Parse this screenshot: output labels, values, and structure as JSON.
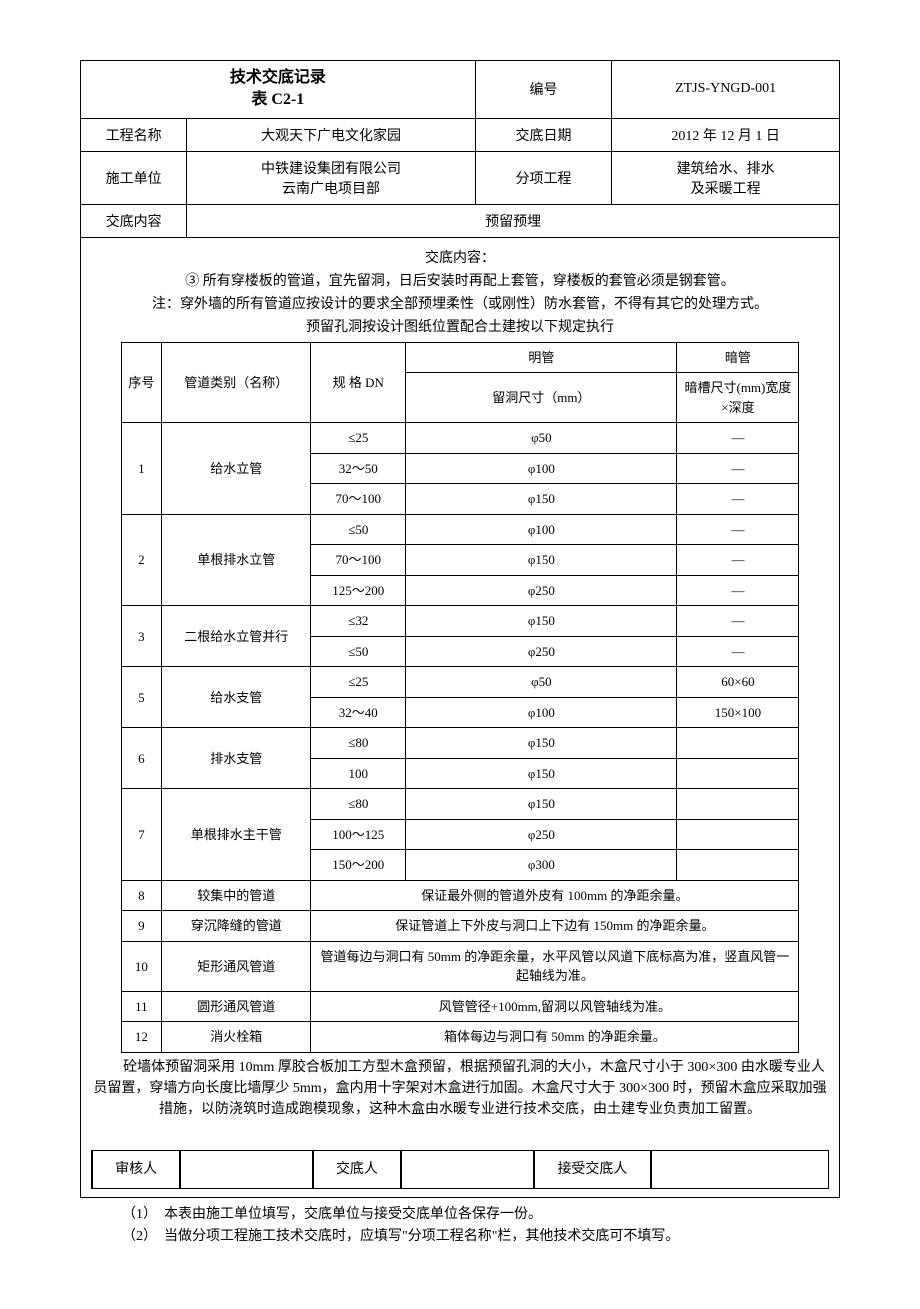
{
  "header": {
    "title_line1": "技术交底记录",
    "title_line2": "表 C2-1",
    "number_label": "编号",
    "number_value": "ZTJS-YNGD-001",
    "project_label": "工程名称",
    "project_value": "大观天下广电文化家园",
    "date_label": "交底日期",
    "date_value": "2012 年 12 月 1 日",
    "unit_label": "施工单位",
    "unit_value_line1": "中铁建设集团有限公司",
    "unit_value_line2": "云南广电项目部",
    "sub_label": "分项工程",
    "sub_value_line1": "建筑给水、排水",
    "sub_value_line2": "及采暖工程",
    "content_label": "交底内容",
    "content_value": "预留预埋"
  },
  "body": {
    "intro_title": "交底内容：",
    "bullet3": "③ 所有穿楼板的管道，宜先留洞，日后安装时再配上套管，穿楼板的套管必须是钢套管。",
    "note_line": "注：穿外墙的所有管道应按设计的要求全部预埋柔性（或刚性）防水套管，不得有其它的处理方式。",
    "table_caption": "预留孔洞按设计图纸位置配合土建按以下规定执行",
    "table_headers": {
      "seq": "序号",
      "category": "管道类别（名称）",
      "spec": "规 格 DN",
      "exposed": "明管",
      "exposed_sub": "留洞尺寸（mm）",
      "hidden": "暗管",
      "hidden_sub": "暗槽尺寸(mm)宽度×深度"
    },
    "rows": [
      {
        "seq": "1",
        "category": "给水立管",
        "specs": [
          "≤25",
          "32～50",
          "70～100"
        ],
        "exposed": [
          "φ50",
          "φ100",
          "φ150"
        ],
        "hidden": [
          "—",
          "—",
          "—"
        ]
      },
      {
        "seq": "2",
        "category": "单根排水立管",
        "specs": [
          "≤50",
          "70～100",
          "125～200"
        ],
        "exposed": [
          "φ100",
          "φ150",
          "φ250"
        ],
        "hidden": [
          "—",
          "—",
          "—"
        ]
      },
      {
        "seq": "3",
        "category": "二根给水立管并行",
        "specs": [
          "≤32",
          "≤50"
        ],
        "exposed": [
          "φ150",
          "φ250"
        ],
        "hidden": [
          "—",
          "—"
        ]
      },
      {
        "seq": "5",
        "category": "给水支管",
        "specs": [
          "≤25",
          "32～40"
        ],
        "exposed": [
          "φ50",
          "φ100"
        ],
        "hidden": [
          "60×60",
          "150×100"
        ]
      },
      {
        "seq": "6",
        "category": "排水支管",
        "specs": [
          "≤80",
          "100"
        ],
        "exposed": [
          "φ150",
          "φ150"
        ],
        "hidden": [
          "",
          ""
        ]
      },
      {
        "seq": "7",
        "category": "单根排水主干管",
        "specs": [
          "≤80",
          "100～125",
          "150～200"
        ],
        "exposed": [
          "φ150",
          "φ250",
          "φ300"
        ],
        "hidden": [
          "",
          "",
          ""
        ]
      }
    ],
    "text_rows": [
      {
        "seq": "8",
        "category": "较集中的管道",
        "text": "保证最外侧的管道外皮有 100mm 的净距余量。"
      },
      {
        "seq": "9",
        "category": "穿沉降缝的管道",
        "text": "保证管道上下外皮与洞口上下边有 150mm 的净距余量。"
      },
      {
        "seq": "10",
        "category": "矩形通风管道",
        "text": "管道每边与洞口有 50mm 的净距余量，水平风管以风道下底标高为准，竖直风管一起轴线为准。"
      },
      {
        "seq": "11",
        "category": "圆形通风管道",
        "text": "风管管径+100mm,留洞以风管轴线为准。"
      },
      {
        "seq": "12",
        "category": "消火栓箱",
        "text": "箱体每边与洞口有 50mm 的净距余量。"
      }
    ],
    "paragraph1": "砼墙体预留洞采用 10mm 厚胶合板加工方型木盒预留，根据预留孔洞的大小，木盒尺寸小于 300×300 由水暖专业人员留置，穿墙方向长度比墙厚少 5mm，盒内用十字架对木盒进行加固。木盒尺寸大于 300×300 时，预留木盒应采取加强措施，以防浇筑时造成跑模现象，这种木盒由水暖专业进行技术交底，由土建专业负责加工留置。"
  },
  "signatures": {
    "reviewer": "审核人",
    "sender": "交底人",
    "receiver": "接受交底人"
  },
  "footnotes": {
    "n1": "（1）　本表由施工单位填写，交底单位与接受交底单位各保存一份。",
    "n2": "（2）　当做分项工程施工技术交底时，应填写\"分项工程名称\"栏，其他技术交底可不填写。"
  }
}
